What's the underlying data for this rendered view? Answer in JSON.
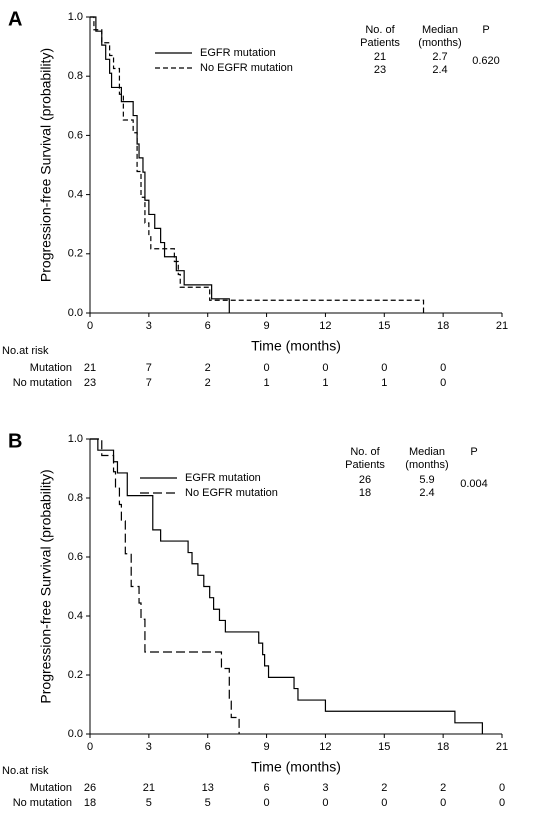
{
  "chart_data": [
    {
      "type": "step",
      "panel_label": "A",
      "x_label": "Time (months)",
      "y_label": "Progression-free Survival (probability)",
      "xlim": [
        0,
        21
      ],
      "xticks": [
        0,
        3,
        6,
        9,
        12,
        15,
        18,
        21
      ],
      "ylim": [
        0,
        1
      ],
      "yticks": [
        {
          "value": 0,
          "label": "0.0"
        },
        0.2,
        0.4,
        0.6,
        0.8,
        {
          "value": 1,
          "label": "1.0"
        }
      ],
      "table_headers": [
        [
          "No. of",
          "Patients"
        ],
        [
          "Median",
          "(months)"
        ],
        [
          "P"
        ]
      ],
      "p_value": {
        "value": 0.62,
        "label": "0.620"
      },
      "series": [
        {
          "name": "EGFR mutation",
          "color": "#000000",
          "dash": "solid",
          "patients": 21,
          "median": 2.7,
          "x": [
            0,
            0.3,
            0.6,
            0.8,
            1.0,
            1.1,
            1.6,
            2.2,
            2.4,
            2.5,
            2.7,
            2.8,
            3.0,
            3.3,
            3.6,
            3.8,
            4.4,
            4.8,
            6.2,
            7.1
          ],
          "values": [
            1,
            0.952,
            0.905,
            0.857,
            0.81,
            0.762,
            0.714,
            0.667,
            0.571,
            0.524,
            0.476,
            0.381,
            0.333,
            0.286,
            0.238,
            0.19,
            0.143,
            0.095,
            0.048,
            0
          ]
        },
        {
          "name": "No EGFR mutation",
          "color": "#000000",
          "dash": "dashed",
          "patients": 23,
          "median": 2.4,
          "x": [
            0,
            0.2,
            0.6,
            1.0,
            1.2,
            1.5,
            1.7,
            2.2,
            2.4,
            2.6,
            2.8,
            3.0,
            3.1,
            4.3,
            4.5,
            4.6,
            6.1,
            17
          ],
          "values": [
            1,
            0.957,
            0.913,
            0.87,
            0.826,
            0.739,
            0.652,
            0.609,
            0.478,
            0.391,
            0.304,
            0.261,
            0.217,
            0.174,
            0.13,
            0.087,
            0.043,
            0
          ]
        }
      ],
      "risk_title": "No.at risk",
      "risk_rows": [
        {
          "label": "Mutation",
          "values": [
            21,
            7,
            2,
            0,
            0,
            0,
            0
          ]
        },
        {
          "label": "No mutation",
          "values": [
            23,
            7,
            2,
            1,
            1,
            1,
            0
          ]
        }
      ]
    },
    {
      "type": "step",
      "panel_label": "B",
      "x_label": "Time (months)",
      "y_label": "Progression-free Survival (probability)",
      "xlim": [
        0,
        21
      ],
      "xticks": [
        0,
        3,
        6,
        9,
        12,
        15,
        18,
        21
      ],
      "ylim": [
        0,
        1
      ],
      "yticks": [
        {
          "value": 0,
          "label": "0.0"
        },
        0.2,
        0.4,
        0.6,
        0.8,
        {
          "value": 1,
          "label": "1.0"
        }
      ],
      "table_headers": [
        [
          "No. of",
          "Patients"
        ],
        [
          "Median",
          "(months)"
        ],
        [
          "P"
        ]
      ],
      "p_value": {
        "value": 0.004,
        "label": "0.004"
      },
      "series": [
        {
          "name": "EGFR mutation",
          "color": "#000000",
          "dash": "solid",
          "patients": 26,
          "median": 5.9,
          "x": [
            0,
            0.4,
            1.2,
            1.4,
            1.9,
            3.2,
            3.6,
            5.0,
            5.2,
            5.5,
            5.8,
            6.1,
            6.3,
            6.6,
            6.9,
            8.6,
            8.8,
            8.9,
            9.1,
            10.4,
            10.6,
            12.0,
            18.6,
            20.0
          ],
          "values": [
            1,
            0.962,
            0.923,
            0.885,
            0.808,
            0.692,
            0.654,
            0.615,
            0.577,
            0.538,
            0.5,
            0.462,
            0.423,
            0.385,
            0.346,
            0.308,
            0.269,
            0.231,
            0.192,
            0.154,
            0.115,
            0.077,
            0.038,
            0
          ]
        },
        {
          "name": "No EGFR mutation",
          "color": "#000000",
          "dash": "longdash",
          "patients": 18,
          "median": 2.4,
          "x": [
            0,
            0.6,
            1.2,
            1.3,
            1.5,
            1.6,
            1.8,
            2.1,
            2.5,
            2.6,
            2.8,
            6.7,
            7.1,
            7.2,
            7.6
          ],
          "values": [
            1,
            0.944,
            0.889,
            0.833,
            0.778,
            0.722,
            0.611,
            0.5,
            0.444,
            0.389,
            0.278,
            0.222,
            0.111,
            0.056,
            0
          ]
        }
      ],
      "risk_title": "No.at risk",
      "risk_rows": [
        {
          "label": "Mutation",
          "values": [
            26,
            21,
            13,
            6,
            3,
            2,
            2,
            0
          ]
        },
        {
          "label": "No mutation",
          "values": [
            18,
            5,
            5,
            0,
            0,
            0,
            0,
            0
          ]
        }
      ]
    }
  ]
}
